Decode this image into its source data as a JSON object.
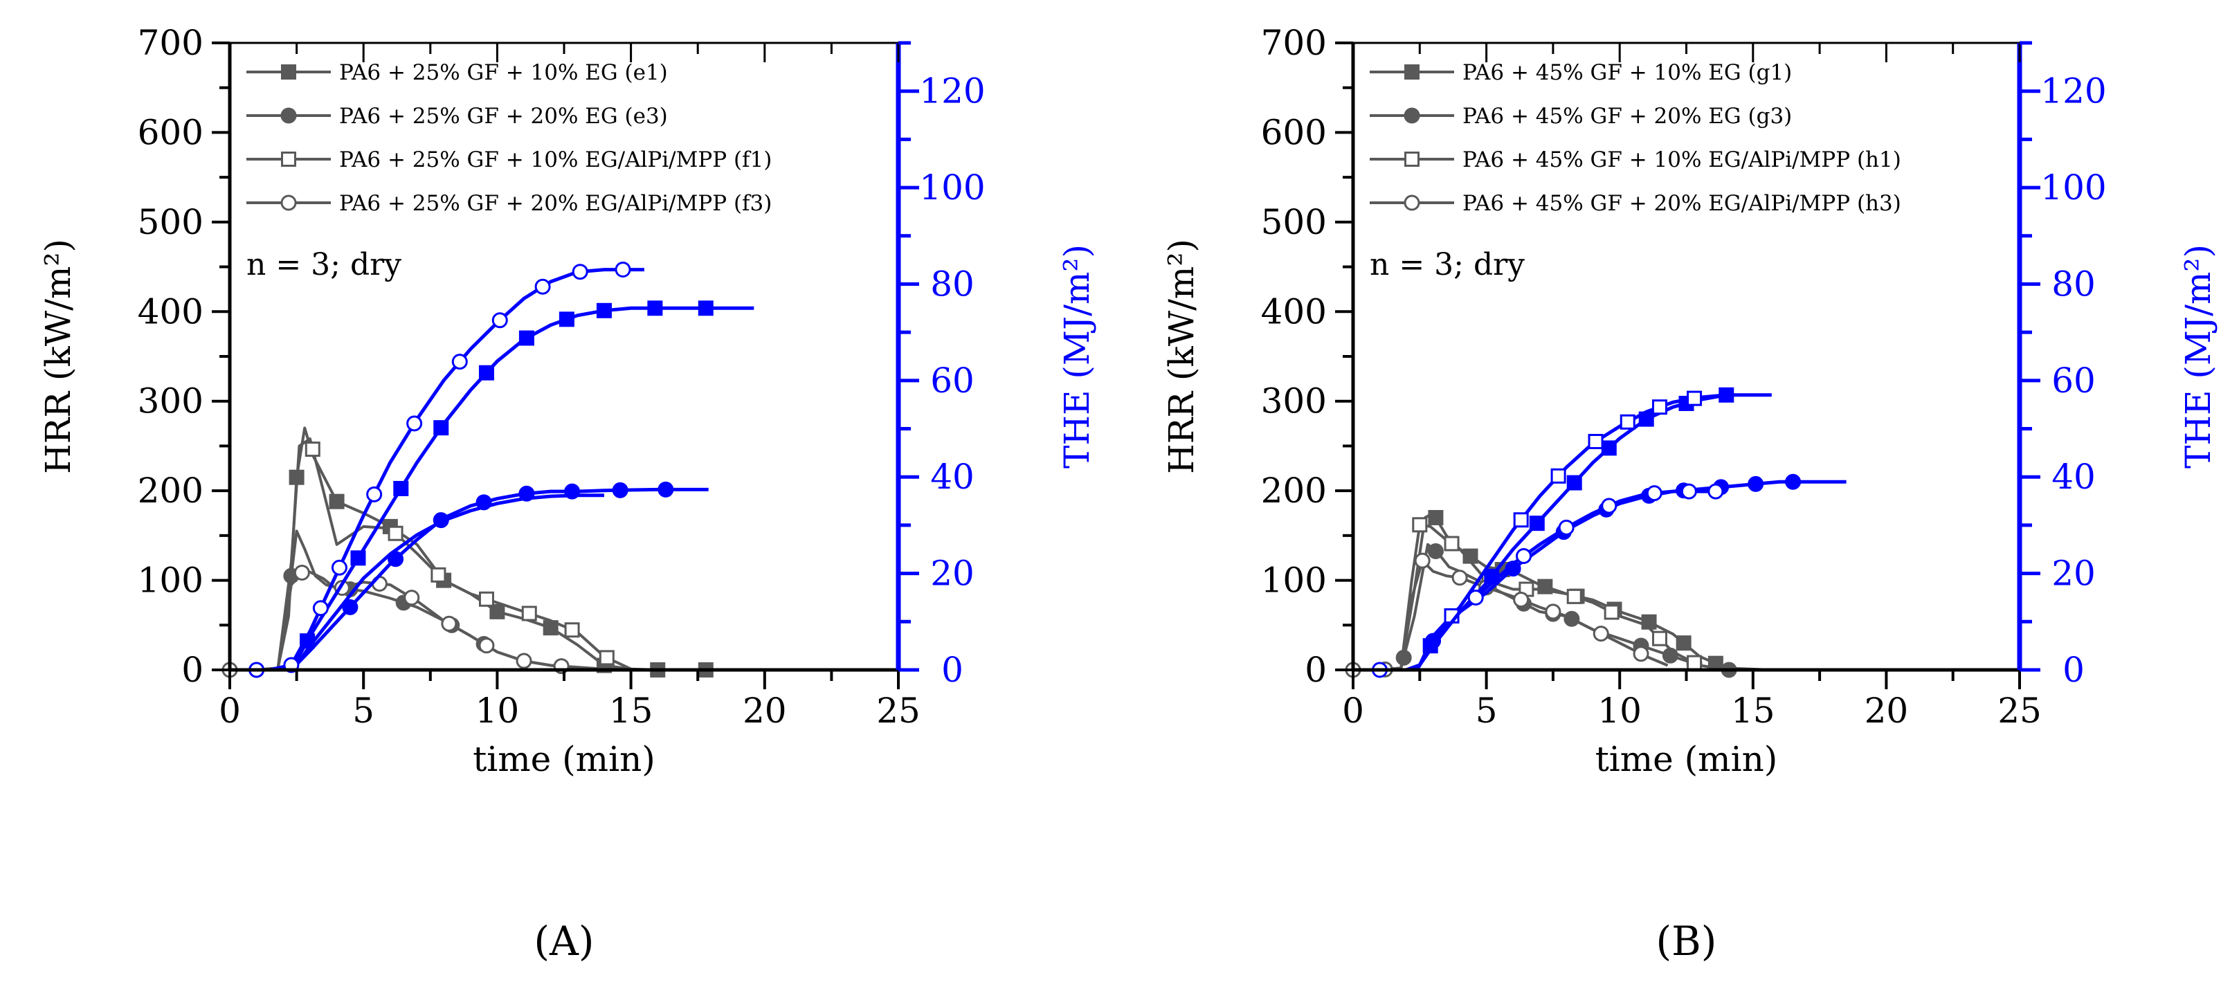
{
  "colors": {
    "hrr": "#595959",
    "the": "#0000ff",
    "axis": "#000000",
    "marker_fill_hollow": "#ffffff"
  },
  "chart_data": [
    {
      "type": "line",
      "panel_label": "(A)",
      "xlabel": "time (min)",
      "ylabel_left": "HRR (kW/m²)",
      "ylabel_right": "THE (MJ/m²)",
      "xlim": [
        0,
        25
      ],
      "ylim_left": [
        0,
        700
      ],
      "ylim_right": [
        0,
        130
      ],
      "xticks": [
        "0",
        "5",
        "10",
        "15",
        "20",
        "25"
      ],
      "yticks_left": [
        "0",
        "100",
        "200",
        "300",
        "400",
        "500",
        "600",
        "700"
      ],
      "yticks_right": [
        "0",
        "20",
        "40",
        "60",
        "80",
        "100",
        "120"
      ],
      "annotation": "n = 3; dry",
      "legend_position": "top-left",
      "series": [
        {
          "name": "PA6 + 25% GF + 10% EG (e1)",
          "marker": "square-filled",
          "axis": "left",
          "x": [
            0,
            1,
            1.8,
            2.2,
            2.5,
            2.8,
            3.1,
            4,
            5,
            6,
            7,
            8,
            9,
            10,
            11,
            12,
            13,
            14,
            15,
            16,
            17,
            18,
            19.6
          ],
          "y": [
            0,
            0,
            2,
            60,
            215,
            270,
            240,
            188,
            175,
            160,
            140,
            100,
            85,
            65,
            57,
            47,
            28,
            5,
            1,
            0,
            0,
            0,
            0
          ],
          "marker_x": [
            2.5,
            4,
            6,
            8,
            10,
            12,
            14,
            16,
            17.8
          ]
        },
        {
          "name": "PA6 + 25% GF + 20% EG (e3)",
          "marker": "circle-filled",
          "axis": "left",
          "x": [
            0,
            1,
            1.8,
            2.2,
            2.5,
            2.8,
            3.2,
            3.6,
            4,
            5,
            6,
            7,
            8,
            9,
            10,
            11,
            12,
            13,
            14,
            15,
            16,
            17.1
          ],
          "y": [
            0,
            0,
            2,
            80,
            155,
            135,
            105,
            95,
            92,
            88,
            80,
            70,
            55,
            38,
            20,
            10,
            5,
            2,
            1,
            0,
            0,
            0
          ],
          "marker_x": [
            2.3,
            4.5,
            6.5,
            8.3,
            9.5
          ]
        },
        {
          "name": "PA6 + 25% GF + 10% EG/AlPi/MPP (f1)",
          "marker": "square-hollow",
          "axis": "left",
          "x": [
            0,
            1,
            1.8,
            2.3,
            2.6,
            3,
            3.5,
            4,
            5,
            6,
            7,
            8,
            9,
            10,
            11,
            12,
            13,
            14,
            15
          ],
          "y": [
            0,
            0,
            2,
            120,
            250,
            258,
            200,
            140,
            160,
            158,
            130,
            100,
            85,
            75,
            65,
            55,
            42,
            15,
            1
          ],
          "marker_x": [
            3.1,
            6.2,
            7.8,
            9.6,
            11.2,
            12.8,
            14.1
          ]
        },
        {
          "name": "PA6 + 25% GF + 20% EG/AlPi/MPP (f3)",
          "marker": "circle-hollow",
          "axis": "left",
          "x": [
            0,
            1,
            1.8,
            2.3,
            2.8,
            3.5,
            4,
            5,
            6,
            7,
            8,
            9,
            10,
            11,
            12,
            13,
            14
          ],
          "y": [
            0,
            0,
            2,
            95,
            112,
            102,
            90,
            98,
            95,
            77,
            55,
            38,
            20,
            10,
            5,
            3,
            1
          ],
          "marker_x": [
            0,
            1,
            2.7,
            4.2,
            5.6,
            6.8,
            8.2,
            9.6,
            11,
            12.4
          ]
        },
        {
          "name": "PA6 + 25% GF + 10% EG (e1) THE",
          "marker": "square-filled",
          "axis": "right",
          "x": [
            2.3,
            3,
            4,
            5,
            6,
            7,
            8,
            9,
            10,
            11,
            12,
            13,
            14,
            15,
            16,
            17,
            18,
            19.6
          ],
          "y": [
            0,
            7,
            16,
            25,
            34,
            43,
            51,
            58,
            64,
            68.5,
            71.5,
            73.5,
            74.5,
            75,
            75,
            75,
            75,
            75
          ],
          "marker_x": [
            2.9,
            4.8,
            6.4,
            7.9,
            9.6,
            11.1,
            12.6,
            14,
            15.9,
            17.8
          ]
        },
        {
          "name": "PA6 + 25% GF + 20% EG (e3) THE",
          "marker": "circle-filled",
          "axis": "right",
          "x": [
            2.3,
            3,
            4,
            5,
            6,
            7,
            8,
            9,
            10,
            11,
            12,
            13,
            14,
            15,
            16,
            17.9
          ],
          "y": [
            0,
            4,
            10,
            16,
            22,
            27,
            31.5,
            34,
            35.5,
            36.5,
            37,
            37,
            37.2,
            37.3,
            37.4,
            37.4
          ],
          "marker_x": [
            4.5,
            6.2,
            7.9,
            9.5,
            11.1,
            12.8,
            14.6,
            16.3
          ]
        },
        {
          "name": "PA6 + 25% GF + 10% EG/AlPi/MPP (f1) THE",
          "marker": "square-hollow",
          "axis": "right",
          "x": [
            0.8,
            2,
            2.5,
            3,
            4,
            5,
            6,
            7,
            8,
            9,
            10,
            11,
            12,
            13,
            14
          ],
          "y": [
            0,
            0,
            1,
            5,
            12,
            19,
            24,
            28,
            31,
            33,
            34.5,
            35.5,
            36,
            36.2,
            36.2
          ],
          "marker_x": []
        },
        {
          "name": "PA6 + 25% GF + 20% EG/AlPi/MPP (f3) THE",
          "marker": "circle-hollow",
          "axis": "right",
          "x": [
            0.8,
            1.5,
            2.3,
            3,
            4,
            5,
            6,
            7,
            8,
            9,
            10,
            11,
            12,
            13,
            14,
            15.5
          ],
          "y": [
            0,
            0,
            1,
            8,
            20,
            32,
            43,
            52,
            60,
            66.5,
            72,
            77,
            80.5,
            82.5,
            83,
            83
          ],
          "marker_x": [
            1,
            2.3,
            3.4,
            4.1,
            5.4,
            6.9,
            8.6,
            10.1,
            11.7,
            13.1,
            14.7
          ]
        }
      ]
    },
    {
      "type": "line",
      "panel_label": "(B)",
      "xlabel": "time (min)",
      "ylabel_left": "HRR (kW/m²)",
      "ylabel_right": "THE (MJ/m²)",
      "xlim": [
        0,
        25
      ],
      "ylim_left": [
        0,
        700
      ],
      "ylim_right": [
        0,
        130
      ],
      "xticks": [
        "0",
        "5",
        "10",
        "15",
        "20",
        "25"
      ],
      "yticks_left": [
        "0",
        "100",
        "200",
        "300",
        "400",
        "500",
        "600",
        "700"
      ],
      "yticks_right": [
        "0",
        "20",
        "40",
        "60",
        "80",
        "100",
        "120"
      ],
      "annotation": "n = 3; dry",
      "legend_position": "top-left",
      "series": [
        {
          "name": "PA6 + 45% GF + 10% EG (g1)",
          "marker": "square-filled",
          "axis": "left",
          "x": [
            0,
            1,
            1.8,
            2.3,
            2.7,
            3,
            3.5,
            4,
            5,
            6,
            7,
            8,
            9,
            10,
            11,
            12,
            13,
            14,
            15.7
          ],
          "y": [
            0,
            0,
            2,
            90,
            170,
            175,
            150,
            135,
            115,
            110,
            95,
            85,
            78,
            65,
            55,
            40,
            15,
            2,
            0
          ],
          "marker_x": [
            3.1,
            4.4,
            5.6,
            7.2,
            8.4,
            9.8,
            11.1,
            12.4,
            13.6
          ]
        },
        {
          "name": "PA6 + 45% GF + 20% EG (g3)",
          "marker": "circle-filled",
          "axis": "left",
          "x": [
            0,
            1,
            1.8,
            2.3,
            2.8,
            3.2,
            3.6,
            4,
            5,
            6,
            7,
            8,
            9,
            10,
            11,
            12,
            13,
            14.1
          ],
          "y": [
            0,
            0,
            2,
            60,
            140,
            130,
            115,
            110,
            95,
            80,
            65,
            60,
            45,
            35,
            25,
            15,
            5,
            0
          ],
          "marker_x": [
            1.9,
            3.1,
            6.4,
            7.5,
            8.2,
            10.8,
            11.9,
            12.8,
            14.1
          ]
        },
        {
          "name": "PA6 + 45% GF + 10% EG/AlPi/MPP (h1)",
          "marker": "square-hollow",
          "axis": "left",
          "x": [
            0,
            1,
            1.8,
            2.2,
            2.5,
            2.9,
            3.5,
            4,
            5,
            6,
            7,
            8,
            9,
            10,
            11,
            12,
            13
          ],
          "y": [
            0,
            0,
            2,
            100,
            162,
            160,
            145,
            135,
            100,
            90,
            90,
            85,
            75,
            60,
            50,
            20,
            5
          ],
          "marker_x": [
            2.5,
            3.7,
            5.1,
            6.5,
            8.3,
            9.7,
            11.5,
            12.8
          ]
        },
        {
          "name": "PA6 + 45% GF + 20% EG/AlPi/MPP (h3)",
          "marker": "circle-hollow",
          "axis": "left",
          "x": [
            0,
            1,
            1.8,
            2.2,
            2.6,
            3,
            3.5,
            4,
            5,
            6,
            7,
            8,
            9,
            10,
            11,
            11.8
          ],
          "y": [
            0,
            0,
            2,
            80,
            122,
            110,
            105,
            103,
            92,
            82,
            70,
            60,
            45,
            30,
            15,
            5
          ],
          "marker_x": [
            0,
            1.2,
            2.6,
            4,
            5,
            6.3,
            7.5,
            9.3,
            10.8
          ]
        },
        {
          "name": "PA6 + 45% GF + 10% EG (g1) THE",
          "marker": "square-filled",
          "axis": "right",
          "x": [
            2.4,
            3,
            4,
            5,
            6,
            7,
            8,
            9,
            10,
            11,
            12,
            13,
            14,
            15.7
          ],
          "y": [
            0,
            6,
            12,
            18,
            25,
            31,
            37,
            43,
            48,
            52,
            54.5,
            56,
            57,
            57
          ],
          "marker_x": [
            2.9,
            5.2,
            6.9,
            8.3,
            9.6,
            11,
            12.5,
            14
          ]
        },
        {
          "name": "PA6 + 45% GF + 20% EG (g3) THE",
          "marker": "circle-filled",
          "axis": "right",
          "x": [
            2.4,
            3,
            4,
            5,
            6,
            7,
            8,
            9,
            10,
            11,
            12,
            13,
            14,
            15,
            16,
            18.5
          ],
          "y": [
            0,
            6,
            12,
            16,
            21,
            25,
            29,
            32,
            34.5,
            36,
            37,
            37.5,
            38,
            38.5,
            39,
            39
          ],
          "marker_x": [
            3,
            6,
            7.9,
            9.5,
            11.1,
            12.4,
            13.8,
            15.1,
            16.5
          ]
        },
        {
          "name": "PA6 + 45% GF + 10% EG/AlPi/MPP (h1) THE",
          "marker": "square-hollow",
          "axis": "right",
          "x": [
            0.8,
            2,
            2.5,
            3,
            4,
            5,
            6,
            7,
            8,
            9,
            10,
            11,
            12,
            13,
            14
          ],
          "y": [
            0,
            0,
            1,
            7,
            13,
            21,
            29,
            36,
            42,
            47,
            50.5,
            53.5,
            55.5,
            56.5,
            57
          ],
          "marker_x": [
            3.7,
            6.3,
            7.7,
            9.1,
            10.3,
            11.5,
            12.8
          ]
        },
        {
          "name": "PA6 + 45% GF + 20% EG/AlPi/MPP (h3) THE",
          "marker": "circle-hollow",
          "axis": "right",
          "x": [
            0.8,
            2,
            2.5,
            3,
            4,
            5,
            6,
            7,
            8,
            9,
            10,
            11,
            12,
            13,
            14
          ],
          "y": [
            0,
            0,
            1,
            5,
            12,
            17,
            22,
            26,
            29.5,
            32.5,
            35,
            36.5,
            37,
            37,
            37
          ],
          "marker_x": [
            1,
            4.6,
            6.4,
            8,
            9.6,
            11.3,
            12.6,
            13.6
          ]
        }
      ]
    }
  ]
}
